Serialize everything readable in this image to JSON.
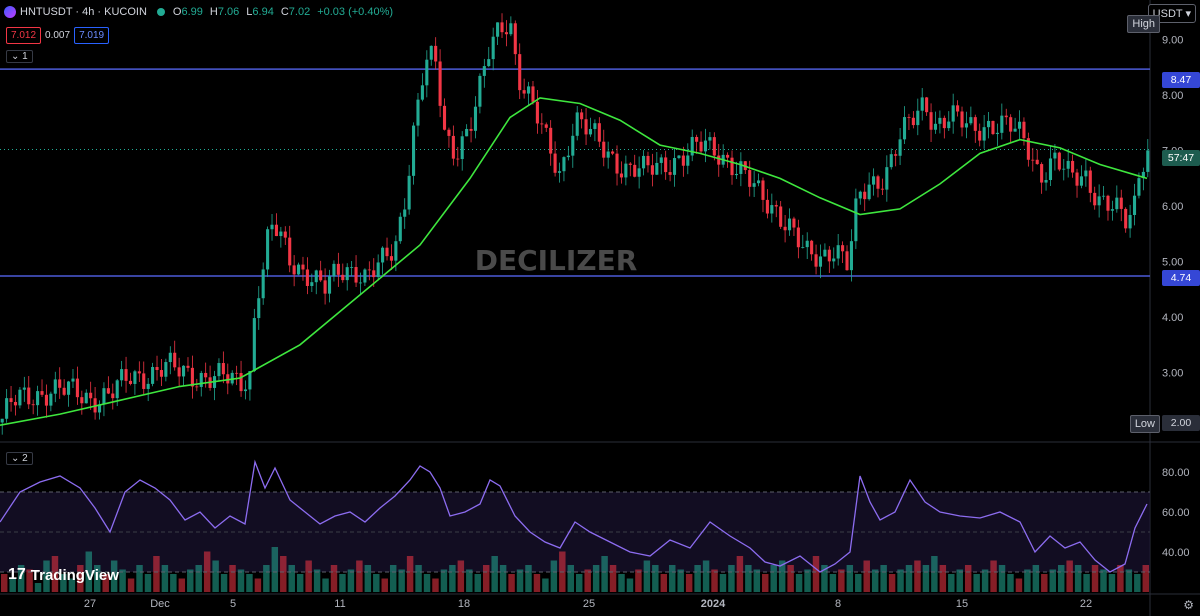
{
  "header": {
    "symbol": "HNTUSDT · 4h · KUCOIN",
    "ohlc": [
      {
        "k": "O",
        "v": "6.99"
      },
      {
        "k": "H",
        "v": "7.06"
      },
      {
        "k": "L",
        "v": "6.94"
      },
      {
        "k": "C",
        "v": "7.02"
      }
    ],
    "change": "+0.03 (+0.40%)",
    "bid": "7.012",
    "spread": "0.007",
    "ask": "7.019"
  },
  "panel_tags": {
    "main": "1",
    "rsi": "2"
  },
  "watermark": "DECILIZER",
  "currency_button": "USDT ▾",
  "branding": {
    "logo_mark": "17",
    "name": "TradingView"
  },
  "price_tags": {
    "high_label": "High",
    "low_label": "Low",
    "low_value": "2.00",
    "upper_level": "8.47",
    "lower_level": "4.74",
    "countdown": "57:47"
  },
  "colors": {
    "up": "#22ab94",
    "down": "#f23645",
    "ma": "#3ee63e",
    "rsi": "#8c6cf0",
    "level": "#4c5bd8",
    "accent": "#2962ff"
  },
  "chart_data": [
    {
      "type": "candlestick",
      "ylim": [
        2.0,
        9.5
      ],
      "y_ticks": [
        "9.00",
        "8.00",
        "7.00",
        "6.00",
        "5.00",
        "4.00",
        "3.00",
        "2.00"
      ],
      "x_ticks": [
        "27",
        "Dec",
        "5",
        "11",
        "18",
        "25",
        "2024",
        "8",
        "15",
        "22"
      ],
      "price_path": [
        [
          0,
          2.1
        ],
        [
          10,
          2.4
        ],
        [
          20,
          2.5
        ],
        [
          35,
          2.6
        ],
        [
          50,
          2.7
        ],
        [
          70,
          2.65
        ],
        [
          90,
          2.55
        ],
        [
          110,
          2.6
        ],
        [
          130,
          2.9
        ],
        [
          150,
          3.0
        ],
        [
          165,
          3.1
        ],
        [
          180,
          3.0
        ],
        [
          200,
          2.95
        ],
        [
          220,
          2.9
        ],
        [
          240,
          2.8
        ],
        [
          250,
          3.0
        ],
        [
          256,
          4.4
        ],
        [
          262,
          4.8
        ],
        [
          270,
          5.6
        ],
        [
          278,
          5.5
        ],
        [
          290,
          5.0
        ],
        [
          310,
          4.8
        ],
        [
          325,
          4.5
        ],
        [
          340,
          4.8
        ],
        [
          355,
          4.9
        ],
        [
          365,
          4.75
        ],
        [
          380,
          4.9
        ],
        [
          395,
          5.2
        ],
        [
          405,
          6.2
        ],
        [
          415,
          7.6
        ],
        [
          425,
          8.6
        ],
        [
          435,
          8.6
        ],
        [
          445,
          7.2
        ],
        [
          455,
          7.0
        ],
        [
          470,
          7.5
        ],
        [
          480,
          8.1
        ],
        [
          490,
          8.8
        ],
        [
          500,
          9.2
        ],
        [
          510,
          9.4
        ],
        [
          518,
          8.4
        ],
        [
          530,
          7.9
        ],
        [
          545,
          7.2
        ],
        [
          560,
          6.6
        ],
        [
          575,
          7.6
        ],
        [
          590,
          7.3
        ],
        [
          605,
          7.0
        ],
        [
          625,
          6.7
        ],
        [
          645,
          6.6
        ],
        [
          665,
          6.8
        ],
        [
          685,
          6.9
        ],
        [
          705,
          7.1
        ],
        [
          720,
          7.0
        ],
        [
          740,
          6.6
        ],
        [
          760,
          6.2
        ],
        [
          775,
          6.0
        ],
        [
          790,
          5.6
        ],
        [
          805,
          5.1
        ],
        [
          820,
          5.1
        ],
        [
          835,
          5.3
        ],
        [
          848,
          4.9
        ],
        [
          858,
          6.1
        ],
        [
          870,
          6.4
        ],
        [
          885,
          6.6
        ],
        [
          900,
          7.2
        ],
        [
          915,
          7.6
        ],
        [
          925,
          7.9
        ],
        [
          935,
          7.5
        ],
        [
          950,
          7.6
        ],
        [
          970,
          7.4
        ],
        [
          990,
          7.5
        ],
        [
          1010,
          7.4
        ],
        [
          1025,
          7.2
        ],
        [
          1040,
          6.6
        ],
        [
          1055,
          6.8
        ],
        [
          1070,
          6.5
        ],
        [
          1085,
          6.6
        ],
        [
          1100,
          6.1
        ],
        [
          1115,
          5.9
        ],
        [
          1127,
          5.7
        ],
        [
          1135,
          6.1
        ],
        [
          1140,
          6.8
        ],
        [
          1147,
          7.02
        ]
      ],
      "moving_average": [
        [
          0,
          2.05
        ],
        [
          60,
          2.25
        ],
        [
          120,
          2.5
        ],
        [
          180,
          2.75
        ],
        [
          240,
          2.9
        ],
        [
          300,
          3.5
        ],
        [
          360,
          4.4
        ],
        [
          420,
          5.3
        ],
        [
          470,
          6.5
        ],
        [
          510,
          7.6
        ],
        [
          540,
          7.95
        ],
        [
          580,
          7.85
        ],
        [
          620,
          7.55
        ],
        [
          660,
          7.1
        ],
        [
          700,
          6.95
        ],
        [
          740,
          6.75
        ],
        [
          780,
          6.5
        ],
        [
          820,
          6.15
        ],
        [
          860,
          5.85
        ],
        [
          900,
          5.95
        ],
        [
          940,
          6.4
        ],
        [
          980,
          6.95
        ],
        [
          1020,
          7.2
        ],
        [
          1060,
          7.05
        ],
        [
          1100,
          6.75
        ],
        [
          1147,
          6.5
        ]
      ],
      "levels": [
        8.47,
        4.74
      ],
      "last_price": 7.02
    },
    {
      "type": "line",
      "name": "",
      "ylim": [
        20,
        90
      ],
      "y_ticks": [
        "80.00",
        "60.00",
        "40.00"
      ],
      "band": [
        30,
        70
      ],
      "values": [
        [
          0,
          55
        ],
        [
          20,
          70
        ],
        [
          40,
          75
        ],
        [
          60,
          78
        ],
        [
          80,
          72
        ],
        [
          95,
          62
        ],
        [
          110,
          50
        ],
        [
          125,
          70
        ],
        [
          140,
          76
        ],
        [
          155,
          72
        ],
        [
          170,
          66
        ],
        [
          185,
          56
        ],
        [
          200,
          60
        ],
        [
          215,
          52
        ],
        [
          230,
          58
        ],
        [
          245,
          54
        ],
        [
          255,
          85
        ],
        [
          265,
          72
        ],
        [
          275,
          82
        ],
        [
          290,
          66
        ],
        [
          305,
          60
        ],
        [
          320,
          54
        ],
        [
          335,
          58
        ],
        [
          350,
          60
        ],
        [
          365,
          55
        ],
        [
          380,
          62
        ],
        [
          395,
          68
        ],
        [
          410,
          76
        ],
        [
          420,
          83
        ],
        [
          430,
          80
        ],
        [
          440,
          72
        ],
        [
          450,
          58
        ],
        [
          465,
          60
        ],
        [
          480,
          64
        ],
        [
          490,
          76
        ],
        [
          500,
          73
        ],
        [
          515,
          58
        ],
        [
          530,
          50
        ],
        [
          545,
          45
        ],
        [
          560,
          42
        ],
        [
          575,
          55
        ],
        [
          590,
          50
        ],
        [
          610,
          45
        ],
        [
          630,
          40
        ],
        [
          650,
          38
        ],
        [
          670,
          46
        ],
        [
          690,
          42
        ],
        [
          710,
          55
        ],
        [
          730,
          48
        ],
        [
          750,
          42
        ],
        [
          765,
          35
        ],
        [
          780,
          33
        ],
        [
          800,
          38
        ],
        [
          820,
          30
        ],
        [
          835,
          34
        ],
        [
          850,
          40
        ],
        [
          860,
          78
        ],
        [
          870,
          65
        ],
        [
          880,
          56
        ],
        [
          895,
          60
        ],
        [
          910,
          76
        ],
        [
          925,
          65
        ],
        [
          940,
          60
        ],
        [
          960,
          58
        ],
        [
          980,
          57
        ],
        [
          1000,
          60
        ],
        [
          1020,
          55
        ],
        [
          1035,
          40
        ],
        [
          1050,
          48
        ],
        [
          1065,
          42
        ],
        [
          1080,
          45
        ],
        [
          1095,
          36
        ],
        [
          1110,
          30
        ],
        [
          1125,
          34
        ],
        [
          1135,
          52
        ],
        [
          1147,
          64
        ]
      ]
    }
  ],
  "volume": [
    0.2,
    0.15,
    0.3,
    0.25,
    0.1,
    0.35,
    0.4,
    0.2,
    0.15,
    0.3,
    0.45,
    0.3,
    0.2,
    0.35,
    0.25,
    0.15,
    0.3,
    0.2,
    0.4,
    0.3,
    0.2,
    0.15,
    0.25,
    0.3,
    0.45,
    0.35,
    0.2,
    0.3,
    0.25,
    0.2,
    0.15,
    0.3,
    0.5,
    0.4,
    0.3,
    0.2,
    0.35,
    0.25,
    0.15,
    0.3,
    0.2,
    0.25,
    0.35,
    0.3,
    0.2,
    0.15,
    0.3,
    0.25,
    0.4,
    0.3,
    0.2,
    0.15,
    0.25,
    0.3,
    0.35,
    0.25,
    0.2,
    0.3,
    0.4,
    0.3,
    0.2,
    0.25,
    0.3,
    0.2,
    0.15,
    0.35,
    0.45,
    0.3,
    0.2,
    0.25,
    0.3,
    0.4,
    0.3,
    0.2,
    0.15,
    0.25,
    0.35,
    0.3,
    0.2,
    0.3,
    0.25,
    0.2,
    0.3,
    0.35,
    0.25,
    0.2,
    0.3,
    0.4,
    0.3,
    0.25,
    0.2,
    0.3,
    0.35,
    0.3,
    0.2,
    0.25,
    0.4,
    0.3,
    0.2,
    0.25,
    0.3,
    0.2,
    0.35,
    0.25,
    0.3,
    0.2,
    0.25,
    0.3,
    0.35,
    0.3,
    0.4,
    0.3,
    0.2,
    0.25,
    0.3,
    0.2,
    0.25,
    0.35,
    0.3,
    0.2,
    0.15,
    0.25,
    0.3,
    0.2,
    0.25,
    0.3,
    0.35,
    0.3,
    0.2,
    0.3,
    0.25,
    0.2,
    0.3,
    0.25,
    0.2,
    0.3
  ]
}
